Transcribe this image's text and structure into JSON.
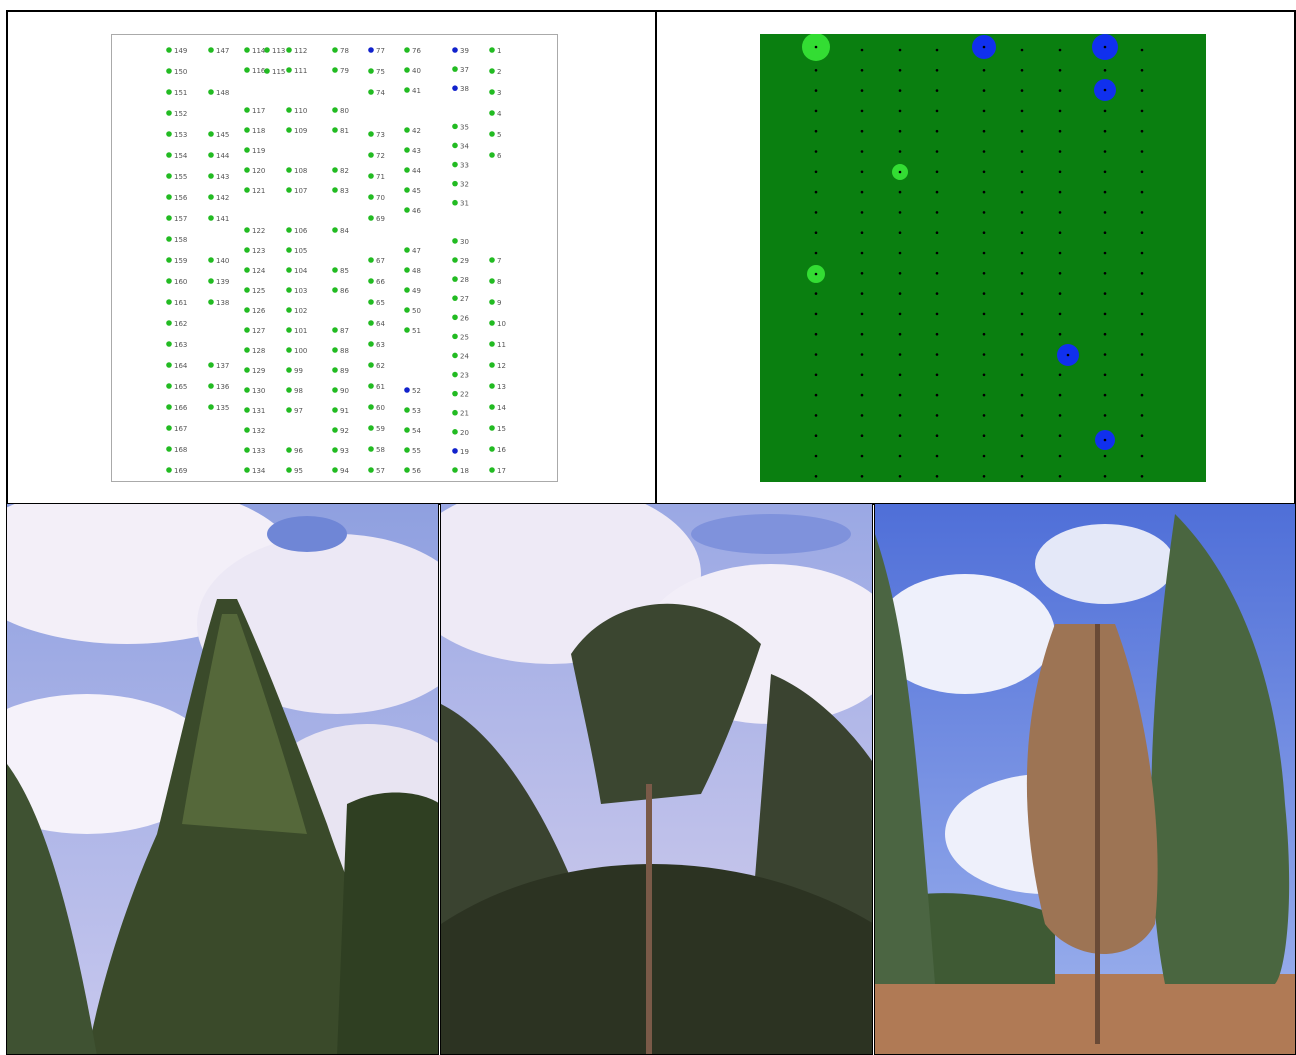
{
  "colors": {
    "healthy": "#22bb22",
    "dead": "#1122cc",
    "field": "#0a7f10",
    "light_green": "#33dd33",
    "blue": "#1030ee"
  },
  "tree_map": {
    "columns": [
      {
        "rows": [
          "149",
          "150",
          "151",
          "152",
          "153",
          "154",
          "155",
          "156",
          "157",
          "158",
          "159",
          "160",
          "161",
          "162",
          "163",
          "164",
          "165",
          "166",
          "167",
          "168",
          "169"
        ]
      },
      {
        "rows": [
          "147",
          "",
          "148",
          "",
          "145",
          "144",
          "143",
          "142",
          "141",
          "",
          "140",
          "139",
          "138",
          "",
          "",
          "137",
          "136",
          "135",
          "",
          "",
          ""
        ]
      },
      {
        "rows": [
          "114",
          "116",
          "",
          "117",
          "118",
          "119",
          "120",
          "121",
          "",
          "122",
          "123",
          "124",
          "125",
          "126",
          "127",
          "128",
          "129",
          "130",
          "131",
          "132",
          "133",
          "134"
        ]
      },
      {
        "rows": [
          "113",
          "115",
          "",
          "",
          "",
          "",
          "",
          "",
          "",
          "",
          "",
          "",
          "",
          "",
          "",
          "",
          "",
          "",
          "",
          "",
          ""
        ]
      },
      {
        "rows": [
          "112",
          "111",
          "",
          "110",
          "109",
          "",
          "108",
          "107",
          "",
          "106",
          "105",
          "104",
          "103",
          "102",
          "101",
          "100",
          "99",
          "98",
          "97",
          "",
          "96",
          "95"
        ]
      },
      {
        "rows": [
          "78",
          "79",
          "",
          "80",
          "81",
          "",
          "82",
          "83",
          "",
          "84",
          "",
          "85",
          "86",
          "",
          "87",
          "88",
          "89",
          "90",
          "91",
          "92",
          "93",
          "94"
        ]
      },
      {
        "rows": [
          "77",
          "75",
          "74",
          "",
          "73",
          "72",
          "71",
          "70",
          "69",
          "",
          "67",
          "66",
          "65",
          "64",
          "63",
          "62",
          "61",
          "60",
          "59",
          "58",
          "57"
        ]
      },
      {
        "rows": [
          "76",
          "40",
          "41",
          "",
          "42",
          "43",
          "44",
          "45",
          "46",
          "",
          "47",
          "48",
          "49",
          "50",
          "51",
          "",
          "",
          "52",
          "53",
          "54",
          "55",
          "56"
        ]
      },
      {
        "rows": [
          "39",
          "37",
          "38",
          "",
          "35",
          "34",
          "33",
          "32",
          "31",
          "",
          "30",
          "29",
          "28",
          "27",
          "26",
          "25",
          "24",
          "23",
          "22",
          "21",
          "20",
          "19",
          "18"
        ]
      },
      {
        "rows": [
          "1",
          "2",
          "3",
          "4",
          "5",
          "6",
          "",
          "",
          "",
          "",
          "7",
          "8",
          "9",
          "10",
          "11",
          "12",
          "13",
          "14",
          "15",
          "16",
          "17"
        ]
      }
    ]
  },
  "photos": [
    {
      "name": "tall-tree-photo"
    },
    {
      "name": "canopy-photo"
    },
    {
      "name": "dying-tree-photo"
    }
  ]
}
